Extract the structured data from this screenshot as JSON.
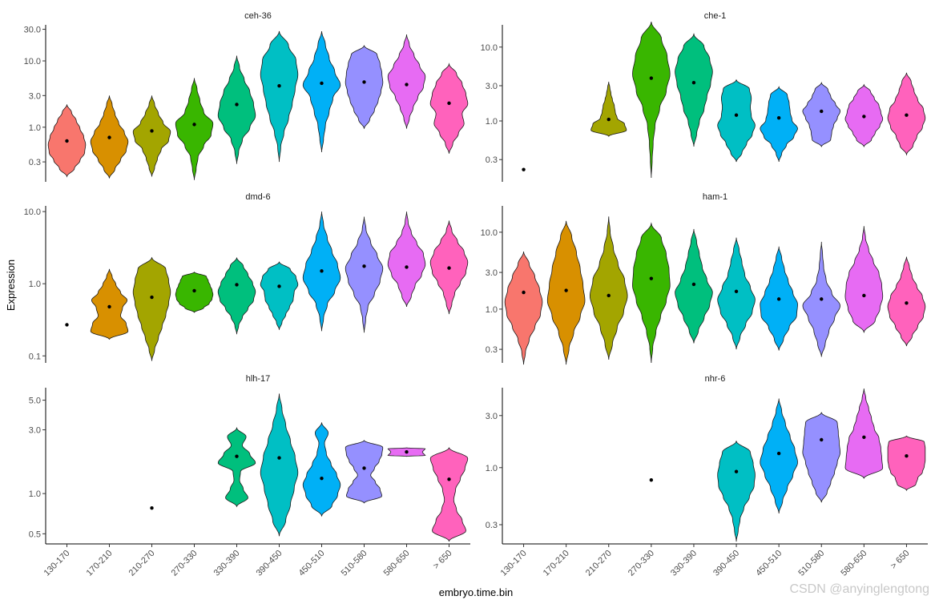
{
  "chart_data": {
    "type": "violin",
    "xlabel": "embryo.time.bin",
    "ylabel": "Expression",
    "y_scale": "log10",
    "categories": [
      "130-170",
      "170-210",
      "210-270",
      "270-330",
      "330-390",
      "390-450",
      "450-510",
      "510-580",
      "580-650",
      "> 650"
    ],
    "colors": [
      "#F8766D",
      "#D89000",
      "#A3A500",
      "#39B600",
      "#00BF7D",
      "#00BFC4",
      "#00B0F6",
      "#9590FF",
      "#E76BF3",
      "#FF62BC"
    ],
    "panels": [
      {
        "title": "ceh-36",
        "ylim": [
          0.15,
          35
        ],
        "yticks": [
          0.3,
          1.0,
          3.0,
          10.0,
          30.0
        ],
        "ytick_labels": [
          "0.3",
          "1.0",
          "3.0",
          "10.0",
          "30.0"
        ],
        "violins": [
          {
            "min": 0.18,
            "max": 2.2,
            "median": 0.62,
            "widths": [
              0.4,
              0.7,
              0.95,
              1.0,
              0.9,
              0.7,
              0.5,
              0.25
            ]
          },
          {
            "min": 0.17,
            "max": 3.0,
            "median": 0.7,
            "widths": [
              0.3,
              0.6,
              0.9,
              1.0,
              0.8,
              0.5,
              0.3,
              0.15
            ]
          },
          {
            "min": 0.18,
            "max": 3.0,
            "median": 0.88,
            "widths": [
              0.15,
              0.3,
              0.5,
              0.9,
              1.0,
              0.6,
              0.35,
              0.15
            ]
          },
          {
            "min": 0.16,
            "max": 5.5,
            "median": 1.1,
            "widths": [
              0.1,
              0.2,
              0.5,
              0.9,
              1.0,
              0.5,
              0.3,
              0.15
            ]
          },
          {
            "min": 0.28,
            "max": 12,
            "median": 2.2,
            "widths": [
              0.1,
              0.3,
              0.7,
              1.0,
              0.9,
              0.7,
              0.4,
              0.15
            ]
          },
          {
            "min": 0.3,
            "max": 28,
            "median": 4.2,
            "widths": [
              0.08,
              0.25,
              0.5,
              0.7,
              0.85,
              1.0,
              0.9,
              0.5
            ]
          },
          {
            "min": 0.42,
            "max": 28,
            "median": 4.6,
            "widths": [
              0.1,
              0.2,
              0.4,
              0.6,
              1.0,
              0.7,
              0.4,
              0.2
            ]
          },
          {
            "min": 0.95,
            "max": 17,
            "median": 4.8,
            "widths": [
              0.3,
              0.55,
              0.75,
              0.9,
              1.0,
              0.95,
              0.85,
              0.7
            ]
          },
          {
            "min": 0.95,
            "max": 25,
            "median": 4.4,
            "widths": [
              0.15,
              0.35,
              0.6,
              0.9,
              1.0,
              0.7,
              0.4,
              0.15
            ]
          },
          {
            "min": 0.4,
            "max": 9,
            "median": 2.3,
            "widths": [
              0.2,
              0.5,
              0.8,
              0.7,
              1.0,
              0.9,
              0.7,
              0.4
            ]
          }
        ]
      },
      {
        "title": "che-1",
        "ylim": [
          0.15,
          20
        ],
        "yticks": [
          0.3,
          1.0,
          3.0,
          10.0
        ],
        "ytick_labels": [
          "0.3",
          "1.0",
          "3.0",
          "10.0"
        ],
        "violins": [
          {
            "median": 0.22
          },
          null,
          {
            "min": 0.62,
            "max": 3.4,
            "median": 1.05,
            "widths": [
              0.95,
              0.85,
              0.45,
              0.35,
              0.3,
              0.2,
              0.12,
              0.06
            ]
          },
          {
            "min": 0.17,
            "max": 22,
            "median": 3.8,
            "widths": [
              0.05,
              0.1,
              0.2,
              0.45,
              0.8,
              1.0,
              0.85,
              0.55
            ]
          },
          {
            "min": 0.45,
            "max": 15,
            "median": 3.3,
            "widths": [
              0.15,
              0.3,
              0.55,
              0.7,
              0.9,
              1.0,
              0.85,
              0.55
            ]
          },
          {
            "min": 0.28,
            "max": 3.6,
            "median": 1.2,
            "widths": [
              0.3,
              0.55,
              0.85,
              1.0,
              0.8,
              0.75,
              0.8,
              0.7
            ]
          },
          {
            "min": 0.28,
            "max": 2.9,
            "median": 1.1,
            "widths": [
              0.15,
              0.4,
              0.8,
              1.0,
              0.7,
              0.6,
              0.55,
              0.45
            ]
          },
          {
            "min": 0.45,
            "max": 3.3,
            "median": 1.35,
            "widths": [
              0.5,
              0.55,
              0.65,
              0.85,
              1.0,
              0.75,
              0.5,
              0.35
            ]
          },
          {
            "min": 0.45,
            "max": 3.1,
            "median": 1.15,
            "widths": [
              0.4,
              0.6,
              0.85,
              1.0,
              0.9,
              0.8,
              0.55,
              0.35
            ]
          },
          {
            "min": 0.35,
            "max": 4.5,
            "median": 1.2,
            "widths": [
              0.35,
              0.55,
              0.85,
              1.0,
              0.9,
              0.6,
              0.4,
              0.25
            ]
          }
        ]
      },
      {
        "title": "dmd-6",
        "ylim": [
          0.08,
          12
        ],
        "yticks": [
          0.1,
          1.0,
          10.0
        ],
        "ytick_labels": [
          "0.1",
          "1.0",
          "10.0"
        ],
        "violins": [
          {
            "median": 0.27
          },
          {
            "min": 0.17,
            "max": 1.6,
            "median": 0.48,
            "widths": [
              1.0,
              0.9,
              0.6,
              0.7,
              0.95,
              0.6,
              0.35,
              0.15
            ]
          },
          {
            "min": 0.085,
            "max": 2.3,
            "median": 0.65,
            "widths": [
              0.15,
              0.35,
              0.55,
              0.75,
              0.9,
              1.0,
              0.9,
              0.75
            ]
          },
          {
            "min": 0.4,
            "max": 1.45,
            "median": 0.8,
            "widths": [
              0.5,
              0.8,
              0.95,
              1.0,
              0.95,
              0.85,
              0.75,
              0.65
            ]
          },
          {
            "min": 0.2,
            "max": 2.3,
            "median": 0.97,
            "widths": [
              0.1,
              0.3,
              0.6,
              0.9,
              1.0,
              0.85,
              0.6,
              0.35
            ]
          },
          {
            "min": 0.23,
            "max": 2.0,
            "median": 0.92,
            "widths": [
              0.15,
              0.35,
              0.55,
              0.75,
              0.8,
              1.0,
              0.9,
              0.6
            ]
          },
          {
            "min": 0.22,
            "max": 10,
            "median": 1.5,
            "widths": [
              0.1,
              0.3,
              0.7,
              1.0,
              0.85,
              0.55,
              0.3,
              0.1
            ]
          },
          {
            "min": 0.21,
            "max": 8.5,
            "median": 1.75,
            "widths": [
              0.08,
              0.2,
              0.55,
              0.85,
              1.0,
              0.7,
              0.35,
              0.1
            ]
          },
          {
            "min": 0.48,
            "max": 10,
            "median": 1.7,
            "widths": [
              0.25,
              0.45,
              0.8,
              1.0,
              0.9,
              0.55,
              0.25,
              0.08
            ]
          },
          {
            "min": 0.38,
            "max": 7.5,
            "median": 1.65,
            "widths": [
              0.15,
              0.3,
              0.6,
              0.9,
              1.0,
              0.8,
              0.45,
              0.15
            ]
          }
        ]
      },
      {
        "title": "ham-1",
        "ylim": [
          0.2,
          22
        ],
        "yticks": [
          0.3,
          1.0,
          3.0,
          10.0
        ],
        "ytick_labels": [
          "0.3",
          "1.0",
          "3.0",
          "10.0"
        ],
        "violins": [
          {
            "min": 0.19,
            "max": 5.6,
            "median": 1.65,
            "widths": [
              0.1,
              0.3,
              0.6,
              0.9,
              1.0,
              0.85,
              0.6,
              0.3
            ]
          },
          {
            "min": 0.19,
            "max": 14,
            "median": 1.75,
            "widths": [
              0.15,
              0.4,
              0.75,
              1.0,
              0.9,
              0.75,
              0.55,
              0.3
            ]
          },
          {
            "min": 0.22,
            "max": 16,
            "median": 1.5,
            "widths": [
              0.2,
              0.45,
              0.8,
              1.0,
              0.85,
              0.5,
              0.25,
              0.08
            ]
          },
          {
            "min": 0.2,
            "max": 13,
            "median": 2.5,
            "widths": [
              0.08,
              0.25,
              0.5,
              0.8,
              1.0,
              0.95,
              0.8,
              0.55
            ]
          },
          {
            "min": 0.36,
            "max": 11,
            "median": 2.1,
            "widths": [
              0.25,
              0.55,
              0.85,
              1.0,
              0.7,
              0.45,
              0.3,
              0.15
            ]
          },
          {
            "min": 0.3,
            "max": 8.5,
            "median": 1.7,
            "widths": [
              0.2,
              0.5,
              0.85,
              1.0,
              0.75,
              0.45,
              0.3,
              0.15
            ]
          },
          {
            "min": 0.29,
            "max": 6.5,
            "median": 1.35,
            "widths": [
              0.25,
              0.55,
              0.95,
              1.0,
              0.75,
              0.5,
              0.3,
              0.15
            ]
          },
          {
            "min": 0.24,
            "max": 7.5,
            "median": 1.35,
            "widths": [
              0.2,
              0.4,
              0.7,
              1.0,
              0.55,
              0.25,
              0.12,
              0.06
            ]
          },
          {
            "min": 0.5,
            "max": 12,
            "median": 1.5,
            "widths": [
              0.6,
              0.85,
              1.0,
              0.95,
              0.8,
              0.5,
              0.25,
              0.08
            ]
          },
          {
            "min": 0.33,
            "max": 4.8,
            "median": 1.2,
            "widths": [
              0.3,
              0.6,
              0.9,
              1.0,
              0.85,
              0.55,
              0.3,
              0.15
            ]
          }
        ]
      },
      {
        "title": "hlh-17",
        "ylim": [
          0.42,
          6.2
        ],
        "yticks": [
          0.5,
          1.0,
          3.0,
          5.0
        ],
        "ytick_labels": [
          "0.5",
          "1.0",
          "3.0",
          "5.0"
        ],
        "violins": [
          null,
          null,
          {
            "median": 0.78
          },
          null,
          {
            "min": 0.8,
            "max": 3.1,
            "median": 1.9,
            "widths": [
              0.6,
              0.35,
              0.15,
              0.2,
              1.0,
              0.7,
              0.3,
              0.5
            ]
          },
          {
            "min": 0.48,
            "max": 5.6,
            "median": 1.85,
            "widths": [
              0.35,
              0.6,
              0.8,
              1.0,
              0.85,
              0.6,
              0.35,
              0.15
            ]
          },
          {
            "min": 0.68,
            "max": 3.4,
            "median": 1.3,
            "widths": [
              0.55,
              0.85,
              1.0,
              0.8,
              0.5,
              0.25,
              0.15,
              0.35
            ]
          },
          {
            "min": 0.85,
            "max": 2.5,
            "median": 1.55,
            "widths": [
              0.95,
              0.85,
              0.6,
              0.35,
              0.55,
              0.8,
              0.95,
              1.0
            ]
          },
          {
            "min": 1.9,
            "max": 2.2,
            "median": 2.05,
            "widths": [
              1.0,
              0.95,
              0.9,
              0.85,
              0.85,
              0.9,
              0.95,
              1.0
            ]
          },
          {
            "min": 0.44,
            "max": 2.2,
            "median": 1.28,
            "widths": [
              0.9,
              0.7,
              0.4,
              0.25,
              0.35,
              0.6,
              0.85,
              1.0
            ]
          }
        ]
      },
      {
        "title": "nhr-6",
        "ylim": [
          0.2,
          5.4
        ],
        "yticks": [
          0.3,
          1.0,
          3.0
        ],
        "ytick_labels": [
          "0.3",
          "1.0",
          "3.0"
        ],
        "violins": [
          null,
          null,
          null,
          {
            "median": 0.77
          },
          null,
          {
            "min": 0.21,
            "max": 1.75,
            "median": 0.92,
            "widths": [
              0.1,
              0.2,
              0.4,
              0.7,
              0.95,
              1.0,
              0.9,
              0.75
            ]
          },
          {
            "min": 0.38,
            "max": 4.3,
            "median": 1.35,
            "widths": [
              0.2,
              0.45,
              0.75,
              1.0,
              0.85,
              0.6,
              0.35,
              0.15
            ]
          },
          {
            "min": 0.48,
            "max": 3.2,
            "median": 1.8,
            "widths": [
              0.3,
              0.5,
              0.7,
              0.85,
              1.0,
              0.95,
              0.9,
              0.85
            ]
          },
          {
            "min": 0.8,
            "max": 5.3,
            "median": 1.9,
            "widths": [
              1.0,
              0.95,
              0.9,
              0.8,
              0.55,
              0.4,
              0.25,
              0.1
            ]
          },
          {
            "min": 0.62,
            "max": 1.95,
            "median": 1.28,
            "widths": [
              0.5,
              0.6,
              0.85,
              0.95,
              1.0,
              1.0,
              1.0,
              0.95
            ]
          }
        ]
      }
    ]
  },
  "watermark": "CSDN @anyinglengtong"
}
